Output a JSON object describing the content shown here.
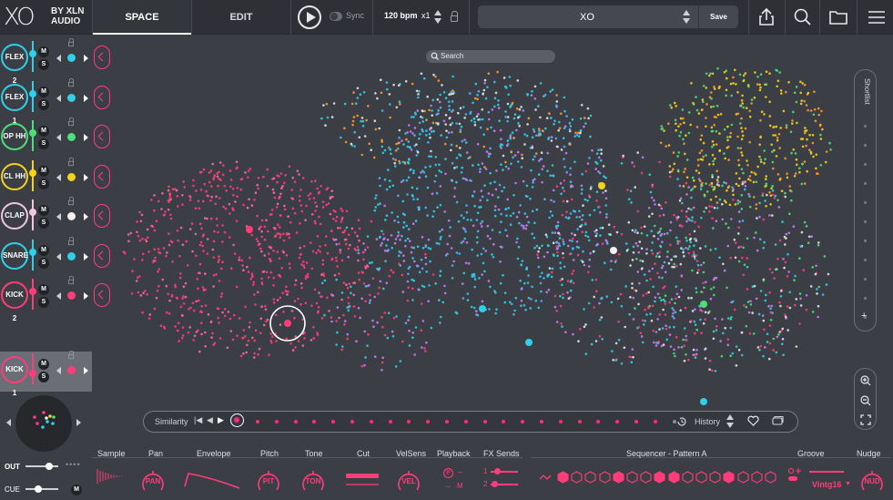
{
  "app": {
    "logo_mark": "XO",
    "logo_by": "BY XLN",
    "logo_company": "AUDIO"
  },
  "header": {
    "tabs": [
      {
        "label": "SPACE",
        "active": true
      },
      {
        "label": "EDIT",
        "active": false
      }
    ],
    "sync_label": "Sync",
    "bpm": "120 bpm",
    "multiplier": "x1",
    "preset_name": "XO",
    "save_label": "Save",
    "icons": [
      "play-icon",
      "lock-icon",
      "share-icon",
      "search-icon",
      "folder-icon",
      "menu-icon"
    ]
  },
  "tracks": [
    {
      "name": "FLEX 2",
      "color": "#2fd0e8",
      "dot": "#2fd0e8"
    },
    {
      "name": "FLEX 1",
      "color": "#2fd0e8",
      "dot": "#2fd0e8"
    },
    {
      "name": "OP HH",
      "color": "#4be07a",
      "dot": "#4be07a"
    },
    {
      "name": "CL HH",
      "color": "#f5d31c",
      "dot": "#f5d31c"
    },
    {
      "name": "CLAP",
      "color": "#f2c6dc",
      "dot": "#f7f0f4"
    },
    {
      "name": "SNARE",
      "color": "#2fd0e8",
      "dot": "#2fd0e8"
    },
    {
      "name": "KICK 2",
      "color": "#ff3d7a",
      "dot": "#ff3d7a"
    },
    {
      "name": "KICK 1",
      "color": "#ff3d7a",
      "dot": "#ff3d7a",
      "selected": true
    }
  ],
  "track_buttons": {
    "mute": "M",
    "solo": "S"
  },
  "mixer": {
    "out_label": "OUT",
    "cue_label": "CUE",
    "cue_mute": "M"
  },
  "space": {
    "search_placeholder": "Search",
    "shortlist_label": "Shortlist",
    "shortlist_add": "+"
  },
  "similarity": {
    "label": "Similarity",
    "history_label": "History"
  },
  "bottom": {
    "labels": [
      "Sample",
      "Pan",
      "Envelope",
      "Pitch",
      "Tone",
      "Cut",
      "VelSens",
      "Playback",
      "FX Sends",
      "Sequencer - Pattern A",
      "Groove",
      "Nudge"
    ],
    "knobs": {
      "pan": "PAN",
      "pitch": "PIT",
      "tone": "TON",
      "vel": "VEL",
      "nudge": "NUD"
    },
    "playback": {
      "p": "P",
      "arrow": "→",
      "m": "M"
    },
    "fx_sends": [
      "1",
      "2"
    ],
    "groove_value": "Vintg16",
    "step_pattern": [
      1,
      0,
      0,
      0,
      1,
      0,
      0,
      1,
      1,
      0,
      0,
      0,
      1,
      0,
      0,
      0
    ]
  },
  "colors": {
    "accent": "#ff3d7a",
    "cyan": "#2fd0e8",
    "green": "#4be07a",
    "yellow": "#f5d31c",
    "orange": "#ff9a2e",
    "purple": "#c77dff",
    "background": "#3b3e44"
  }
}
